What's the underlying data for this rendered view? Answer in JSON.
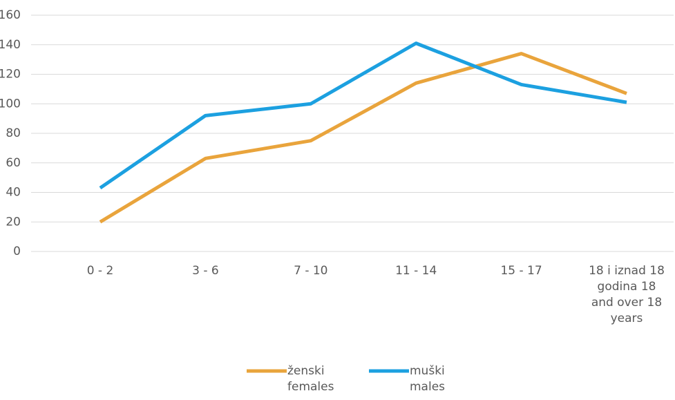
{
  "chart_data": {
    "type": "line",
    "categories": [
      "0 - 2",
      "3 - 6",
      "7 - 10",
      "11 - 14",
      "15 - 17",
      "18 i iznad 18 godina 18 and over 18 years"
    ],
    "series": [
      {
        "name": "ženski females",
        "color": "#E9A43C",
        "values": [
          20,
          63,
          75,
          114,
          134,
          107
        ]
      },
      {
        "name": "muški males",
        "color": "#1CA0E0",
        "values": [
          43,
          92,
          100,
          141,
          113,
          101
        ]
      }
    ],
    "ylim": [
      0,
      160
    ],
    "yticks": [
      0,
      20,
      40,
      60,
      80,
      100,
      120,
      140,
      160
    ],
    "grid": true,
    "legend": "bottom"
  }
}
